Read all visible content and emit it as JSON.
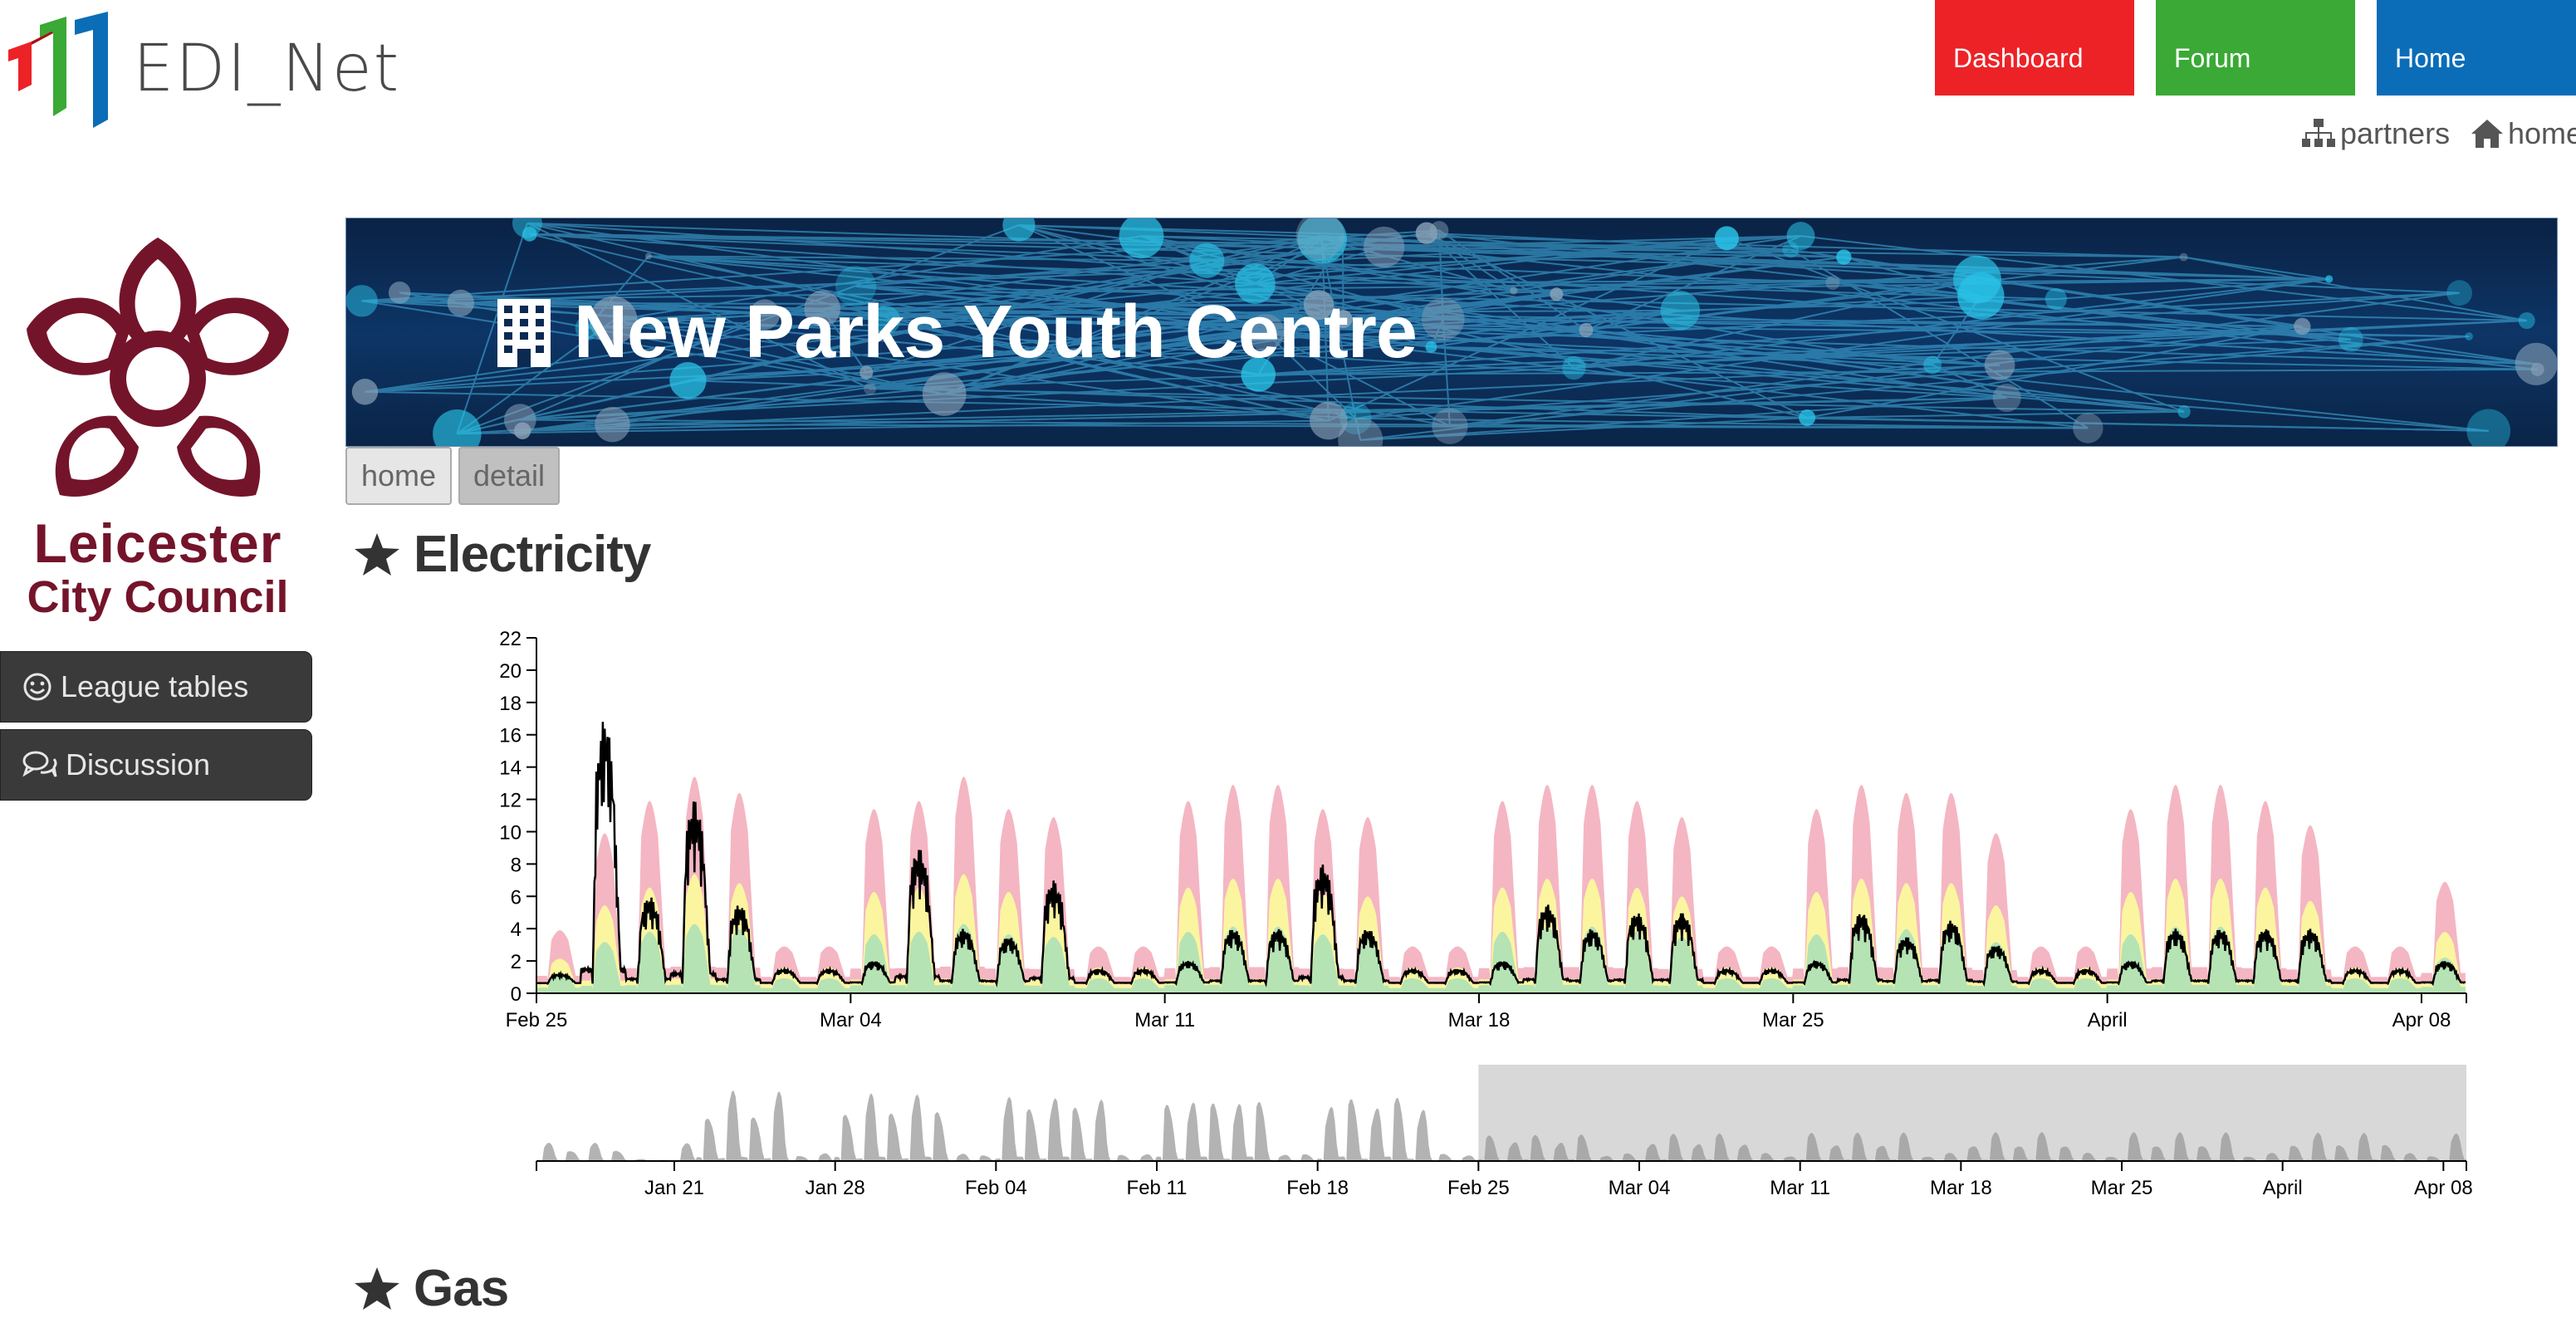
{
  "brand": {
    "name": "EDI_Net"
  },
  "nav": {
    "dashboard": "Dashboard",
    "forum": "Forum",
    "home": "Home"
  },
  "toplinks": {
    "partners": "partners",
    "home": "home"
  },
  "council": {
    "line1": "Leicester",
    "line2": "City Council"
  },
  "sidebar": {
    "items": [
      {
        "label": "League tables",
        "icon": "smile-icon"
      },
      {
        "label": "Discussion",
        "icon": "comments-icon"
      }
    ]
  },
  "banner": {
    "title": "New Parks Youth Centre",
    "icon": "building-icon"
  },
  "tabs": [
    {
      "label": "home"
    },
    {
      "label": "detail"
    }
  ],
  "sections": [
    {
      "title": "Electricity",
      "icon": "star-icon"
    },
    {
      "title": "Gas",
      "icon": "star-icon"
    }
  ],
  "colors": {
    "dashboard": "#ec2227",
    "forum": "#3aa935",
    "home": "#0b6db7",
    "band_high": "#f4b6c2",
    "band_mid": "#fbf5a0",
    "band_low": "#b6e3b4",
    "brush": "#d8d8d8"
  },
  "chart_data": [
    {
      "type": "area",
      "ylim": [
        0,
        22
      ],
      "yticks": [
        "0",
        "2",
        "4",
        "6",
        "8",
        "10",
        "12",
        "14",
        "16",
        "18",
        "20",
        "22"
      ],
      "xticks": [
        "Feb 25",
        "Mar 04",
        "Mar 11",
        "Mar 18",
        "Mar 25",
        "April",
        "Apr 08"
      ],
      "x_range": [
        "2019-02-25",
        "2019-04-09"
      ],
      "bands": [
        "low",
        "mid",
        "high"
      ],
      "daily_peaks": [
        {
          "date": "2019-02-25",
          "actual": 1.2,
          "high": 3.0
        },
        {
          "date": "2019-02-26",
          "actual": 17.0,
          "high": 9.0
        },
        {
          "date": "2019-02-27",
          "actual": 6.0,
          "high": 11.0
        },
        {
          "date": "2019-02-28",
          "actual": 12.0,
          "high": 12.5
        },
        {
          "date": "2019-03-01",
          "actual": 5.5,
          "high": 11.5
        },
        {
          "date": "2019-03-02",
          "actual": 1.5,
          "high": 2.0
        },
        {
          "date": "2019-03-03",
          "actual": 1.5,
          "high": 2.0
        },
        {
          "date": "2019-03-04",
          "actual": 2.0,
          "high": 10.5
        },
        {
          "date": "2019-03-05",
          "actual": 9.0,
          "high": 11.0
        },
        {
          "date": "2019-03-06",
          "actual": 4.0,
          "high": 12.5
        },
        {
          "date": "2019-03-07",
          "actual": 3.5,
          "high": 10.5
        },
        {
          "date": "2019-03-08",
          "actual": 7.0,
          "high": 10.0
        },
        {
          "date": "2019-03-09",
          "actual": 1.5,
          "high": 2.0
        },
        {
          "date": "2019-03-10",
          "actual": 1.5,
          "high": 2.0
        },
        {
          "date": "2019-03-11",
          "actual": 2.0,
          "high": 11.0
        },
        {
          "date": "2019-03-12",
          "actual": 4.0,
          "high": 12.0
        },
        {
          "date": "2019-03-13",
          "actual": 4.0,
          "high": 12.0
        },
        {
          "date": "2019-03-14",
          "actual": 8.0,
          "high": 10.5
        },
        {
          "date": "2019-03-15",
          "actual": 4.0,
          "high": 10.0
        },
        {
          "date": "2019-03-16",
          "actual": 1.5,
          "high": 2.0
        },
        {
          "date": "2019-03-17",
          "actual": 1.5,
          "high": 2.0
        },
        {
          "date": "2019-03-18",
          "actual": 2.0,
          "high": 11.0
        },
        {
          "date": "2019-03-19",
          "actual": 5.5,
          "high": 12.0
        },
        {
          "date": "2019-03-20",
          "actual": 4.0,
          "high": 12.0
        },
        {
          "date": "2019-03-21",
          "actual": 5.0,
          "high": 11.0
        },
        {
          "date": "2019-03-22",
          "actual": 5.0,
          "high": 10.0
        },
        {
          "date": "2019-03-23",
          "actual": 1.5,
          "high": 2.0
        },
        {
          "date": "2019-03-24",
          "actual": 1.5,
          "high": 2.0
        },
        {
          "date": "2019-03-25",
          "actual": 2.0,
          "high": 10.5
        },
        {
          "date": "2019-03-26",
          "actual": 5.0,
          "high": 12.0
        },
        {
          "date": "2019-03-27",
          "actual": 3.5,
          "high": 11.5
        },
        {
          "date": "2019-03-28",
          "actual": 4.5,
          "high": 11.5
        },
        {
          "date": "2019-03-29",
          "actual": 3.0,
          "high": 9.0
        },
        {
          "date": "2019-03-30",
          "actual": 1.5,
          "high": 2.0
        },
        {
          "date": "2019-03-31",
          "actual": 1.5,
          "high": 2.0
        },
        {
          "date": "2019-04-01",
          "actual": 2.0,
          "high": 10.5
        },
        {
          "date": "2019-04-02",
          "actual": 4.0,
          "high": 12.0
        },
        {
          "date": "2019-04-03",
          "actual": 4.0,
          "high": 12.0
        },
        {
          "date": "2019-04-04",
          "actual": 4.0,
          "high": 11.0
        },
        {
          "date": "2019-04-05",
          "actual": 4.0,
          "high": 9.5
        },
        {
          "date": "2019-04-06",
          "actual": 1.5,
          "high": 2.0
        },
        {
          "date": "2019-04-07",
          "actual": 1.5,
          "high": 2.0
        },
        {
          "date": "2019-04-08",
          "actual": 2.0,
          "high": 6.0
        }
      ]
    },
    {
      "type": "area",
      "role": "overview-brush",
      "xticks": [
        "Jan 21",
        "Jan 28",
        "Feb 04",
        "Feb 11",
        "Feb 18",
        "Feb 25",
        "Mar 04",
        "Mar 11",
        "Mar 18",
        "Mar 25",
        "April",
        "Apr 08"
      ],
      "x_range": [
        "2019-01-15",
        "2019-04-09"
      ],
      "brush_range": [
        "2019-02-25",
        "2019-04-09"
      ]
    }
  ]
}
